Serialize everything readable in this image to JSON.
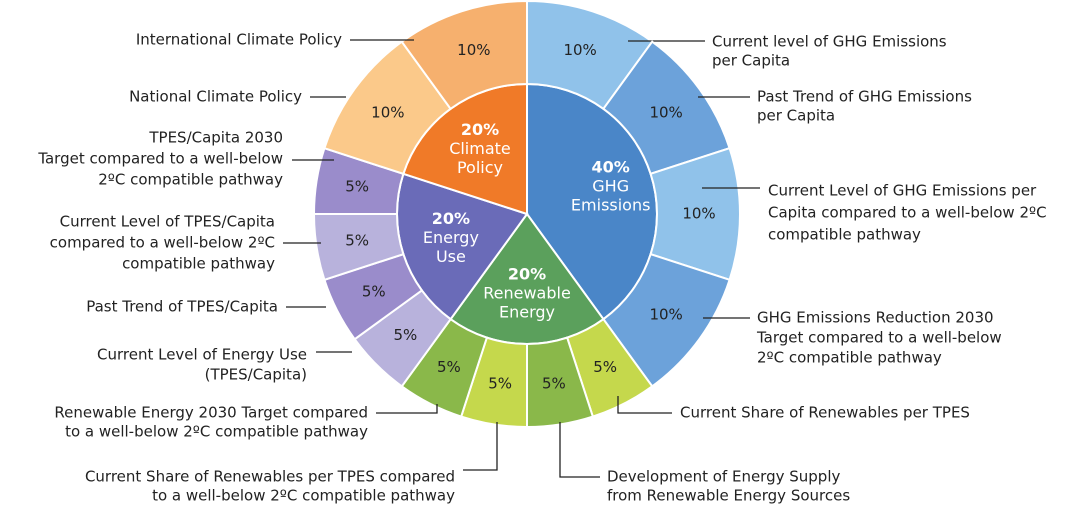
{
  "chart_data": {
    "type": "sunburst",
    "groups": [
      {
        "name": [
          "GHG",
          "Emissions"
        ],
        "value": 40,
        "value_label": "40%",
        "color": "#4a86c8",
        "children": [
          {
            "label": [
              "Current level of GHG Emissions",
              "per Capita"
            ],
            "value": 10,
            "value_label": "10%",
            "color": "#90c2ea"
          },
          {
            "label": [
              "Past Trend of GHG Emissions",
              "per Capita"
            ],
            "value": 10,
            "value_label": "10%",
            "color": "#6ca2da"
          },
          {
            "label": [
              "Current Level of GHG Emissions per",
              "Capita compared to a well-below 2ºC",
              "compatible pathway"
            ],
            "value": 10,
            "value_label": "10%",
            "color": "#90c2ea"
          },
          {
            "label": [
              "GHG Emissions Reduction 2030",
              "Target compared to a well-below",
              "2ºC compatible pathway"
            ],
            "value": 10,
            "value_label": "10%",
            "color": "#6ca2da"
          }
        ]
      },
      {
        "name": [
          "Renewable",
          "Energy"
        ],
        "value": 20,
        "value_label": "20%",
        "color": "#5ba05c",
        "children": [
          {
            "label": [
              "Current Share of Renewables per TPES"
            ],
            "value": 5,
            "value_label": "5%",
            "color": "#c5d84c"
          },
          {
            "label": [
              "Development of Energy Supply",
              "from Renewable Energy Sources"
            ],
            "value": 5,
            "value_label": "5%",
            "color": "#8ab84a"
          },
          {
            "label": [
              "Current Share of Renewables per TPES compared",
              "to a well-below 2ºC compatible pathway"
            ],
            "value": 5,
            "value_label": "5%",
            "color": "#c5d84c"
          },
          {
            "label": [
              "Renewable Energy 2030 Target compared",
              "to a well-below 2ºC compatible pathway"
            ],
            "value": 5,
            "value_label": "5%",
            "color": "#8ab84a"
          }
        ]
      },
      {
        "name": [
          "Energy",
          "Use"
        ],
        "value": 20,
        "value_label": "20%",
        "color": "#6a6bb8",
        "children": [
          {
            "label": [
              "Current Level of Energy Use",
              "(TPES/Capita)"
            ],
            "value": 5,
            "value_label": "5%",
            "color": "#b8b2dc"
          },
          {
            "label": [
              "Past Trend of TPES/Capita"
            ],
            "value": 5,
            "value_label": "5%",
            "color": "#9a8ccb"
          },
          {
            "label": [
              "Current Level of TPES/Capita",
              "compared to a well-below 2ºC",
              "compatible pathway"
            ],
            "value": 5,
            "value_label": "5%",
            "color": "#b8b2dc"
          },
          {
            "label": [
              "TPES/Capita 2030",
              "Target compared to a well-below",
              "2ºC compatible pathway"
            ],
            "value": 5,
            "value_label": "5%",
            "color": "#9a8ccb"
          }
        ]
      },
      {
        "name": [
          "Climate",
          "Policy"
        ],
        "value": 20,
        "value_label": "20%",
        "color": "#f07a28",
        "children": [
          {
            "label": [
              "National Climate Policy"
            ],
            "value": 10,
            "value_label": "10%",
            "color": "#fbc98a"
          },
          {
            "label": [
              "International Climate Policy"
            ],
            "value": 10,
            "value_label": "10%",
            "color": "#f6b06e"
          }
        ]
      }
    ]
  }
}
